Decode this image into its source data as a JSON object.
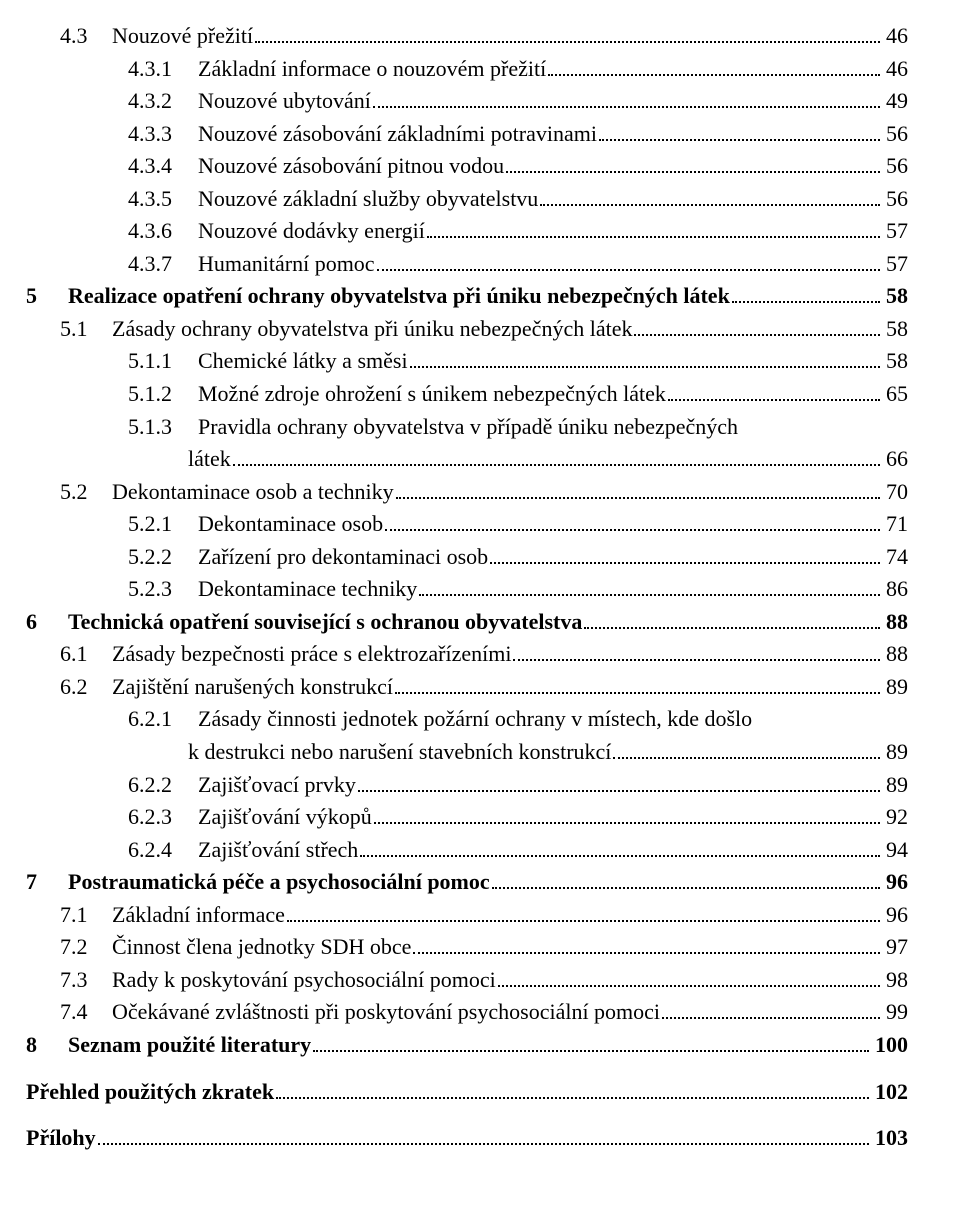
{
  "lines": [
    {
      "cls": "indent-a",
      "num": "4.3",
      "numcls": "num-col-a",
      "text": "Nouzové přežití",
      "page": "46"
    },
    {
      "cls": "indent-b",
      "num": "4.3.1",
      "numcls": "num-col-b",
      "text": "Základní informace o nouzovém přežití",
      "page": "46"
    },
    {
      "cls": "indent-b",
      "num": "4.3.2",
      "numcls": "num-col-b",
      "text": "Nouzové ubytování",
      "page": "49"
    },
    {
      "cls": "indent-b",
      "num": "4.3.3",
      "numcls": "num-col-b",
      "text": "Nouzové zásobování základními potravinami",
      "page": "56"
    },
    {
      "cls": "indent-b",
      "num": "4.3.4",
      "numcls": "num-col-b",
      "text": "Nouzové zásobování pitnou vodou",
      "page": "56"
    },
    {
      "cls": "indent-b",
      "num": "4.3.5",
      "numcls": "num-col-b",
      "text": "Nouzové základní služby obyvatelstvu",
      "page": "56"
    },
    {
      "cls": "indent-b",
      "num": "4.3.6",
      "numcls": "num-col-b",
      "text": "Nouzové dodávky energií",
      "page": "57"
    },
    {
      "cls": "indent-b",
      "num": "4.3.7",
      "numcls": "num-col-b",
      "text": "Humanitární pomoc",
      "page": "57"
    },
    {
      "cls": "indent-ch bold",
      "num": "5",
      "numcls": "num-col-ch",
      "text": "Realizace opatření ochrany obyvatelstva při úniku nebezpečných látek",
      "page": "58"
    },
    {
      "cls": "indent-a",
      "num": "5.1",
      "numcls": "num-col-a",
      "text": "Zásady ochrany obyvatelstva při úniku nebezpečných látek",
      "page": "58"
    },
    {
      "cls": "indent-b",
      "num": "5.1.1",
      "numcls": "num-col-b",
      "text": "Chemické látky a směsi",
      "page": "58"
    },
    {
      "cls": "indent-b",
      "num": "5.1.2",
      "numcls": "num-col-b",
      "text": "Možné zdroje ohrožení s únikem nebezpečných látek",
      "page": "65"
    },
    {
      "cls": "indent-b",
      "num": "5.1.3",
      "numcls": "num-col-b",
      "text": "Pravidla ochrany obyvatelstva v případě úniku nebezpečných",
      "nopage": true
    },
    {
      "cls": "indent-b2",
      "text": "látek",
      "page": "66"
    },
    {
      "cls": "indent-a",
      "num": "5.2",
      "numcls": "num-col-a",
      "text": "Dekontaminace osob a techniky",
      "page": "70"
    },
    {
      "cls": "indent-b",
      "num": "5.2.1",
      "numcls": "num-col-b",
      "text": "Dekontaminace osob",
      "page": "71"
    },
    {
      "cls": "indent-b",
      "num": "5.2.2",
      "numcls": "num-col-b",
      "text": "Zařízení pro dekontaminaci osob",
      "page": "74"
    },
    {
      "cls": "indent-b",
      "num": "5.2.3",
      "numcls": "num-col-b",
      "text": "Dekontaminace techniky",
      "page": "86"
    },
    {
      "cls": "indent-ch bold",
      "num": "6",
      "numcls": "num-col-ch",
      "text": "Technická opatření související s ochranou obyvatelstva",
      "page": "88"
    },
    {
      "cls": "indent-a",
      "num": "6.1",
      "numcls": "num-col-a",
      "text": "Zásady bezpečnosti práce s elektrozařízeními",
      "page": "88"
    },
    {
      "cls": "indent-a",
      "num": "6.2",
      "numcls": "num-col-a",
      "text": "Zajištění narušených konstrukcí",
      "page": "89"
    },
    {
      "cls": "indent-b",
      "num": "6.2.1",
      "numcls": "num-col-b",
      "text": "Zásady činnosti jednotek požární ochrany v místech, kde došlo",
      "nopage": true
    },
    {
      "cls": "indent-b2",
      "text": "k destrukci nebo narušení stavebních konstrukcí",
      "page": "89"
    },
    {
      "cls": "indent-b",
      "num": "6.2.2",
      "numcls": "num-col-b",
      "text": "Zajišťovací prvky",
      "page": "89"
    },
    {
      "cls": "indent-b",
      "num": "6.2.3",
      "numcls": "num-col-b",
      "text": "Zajišťování výkopů",
      "page": "92"
    },
    {
      "cls": "indent-b",
      "num": "6.2.4",
      "numcls": "num-col-b",
      "text": "Zajišťování střech",
      "page": "94"
    },
    {
      "cls": "indent-ch bold",
      "num": "7",
      "numcls": "num-col-ch",
      "text": "Postraumatická péče a psychosociální pomoc",
      "page": "96"
    },
    {
      "cls": "indent-a",
      "num": "7.1",
      "numcls": "num-col-a",
      "text": "Základní informace",
      "page": "96"
    },
    {
      "cls": "indent-a",
      "num": "7.2",
      "numcls": "num-col-a",
      "text": "Činnost člena jednotky SDH obce",
      "page": "97"
    },
    {
      "cls": "indent-a",
      "num": "7.3",
      "numcls": "num-col-a",
      "text": "Rady k poskytování psychosociální pomoci",
      "page": "98"
    },
    {
      "cls": "indent-a",
      "num": "7.4",
      "numcls": "num-col-a",
      "text": "Očekávané zvláštnosti při poskytování psychosociální pomoci",
      "page": "99"
    },
    {
      "cls": "indent-ch bold",
      "num": "8",
      "numcls": "num-col-ch",
      "text": "Seznam použité literatury",
      "page": "100"
    },
    {
      "cls": "indent-ch bold gap-top-big",
      "text": "Přehled použitých zkratek",
      "page": "102"
    },
    {
      "cls": "indent-ch bold gap-top-big",
      "text": "Přílohy",
      "page": "103"
    }
  ]
}
